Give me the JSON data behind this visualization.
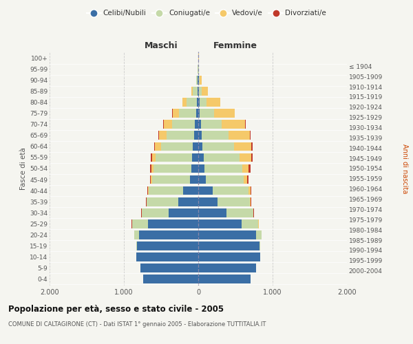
{
  "age_groups": [
    "0-4",
    "5-9",
    "10-14",
    "15-19",
    "20-24",
    "25-29",
    "30-34",
    "35-39",
    "40-44",
    "45-49",
    "50-54",
    "55-59",
    "60-64",
    "65-69",
    "70-74",
    "75-79",
    "80-84",
    "85-89",
    "90-94",
    "95-99",
    "100+"
  ],
  "birth_years": [
    "2000-2004",
    "1995-1999",
    "1990-1994",
    "1985-1989",
    "1980-1984",
    "1975-1979",
    "1970-1974",
    "1965-1969",
    "1960-1964",
    "1955-1959",
    "1950-1954",
    "1945-1949",
    "1940-1944",
    "1935-1939",
    "1930-1934",
    "1925-1929",
    "1920-1924",
    "1915-1919",
    "1910-1914",
    "1905-1909",
    "≤ 1904"
  ],
  "maschi": {
    "celibi": [
      740,
      780,
      830,
      820,
      800,
      680,
      400,
      270,
      200,
      110,
      90,
      80,
      70,
      55,
      45,
      25,
      15,
      10,
      5,
      3,
      2
    ],
    "coniugati": [
      1,
      2,
      5,
      10,
      60,
      210,
      360,
      420,
      470,
      510,
      510,
      490,
      430,
      370,
      310,
      230,
      140,
      60,
      20,
      5,
      2
    ],
    "vedovi": [
      0,
      0,
      0,
      0,
      0,
      1,
      2,
      3,
      5,
      15,
      30,
      50,
      80,
      100,
      110,
      90,
      55,
      20,
      5,
      2,
      0
    ],
    "divorziati": [
      0,
      0,
      0,
      1,
      2,
      4,
      8,
      10,
      12,
      15,
      20,
      18,
      15,
      12,
      10,
      5,
      3,
      2,
      1,
      0,
      0
    ]
  },
  "femmine": {
    "nubili": [
      700,
      780,
      830,
      820,
      780,
      580,
      380,
      260,
      190,
      100,
      80,
      70,
      55,
      45,
      35,
      20,
      15,
      10,
      5,
      3,
      2
    ],
    "coniugate": [
      1,
      2,
      5,
      15,
      70,
      230,
      360,
      430,
      490,
      510,
      510,
      490,
      430,
      360,
      280,
      190,
      100,
      40,
      18,
      5,
      2
    ],
    "vedove": [
      0,
      0,
      0,
      0,
      1,
      2,
      5,
      10,
      20,
      45,
      90,
      150,
      230,
      290,
      310,
      280,
      180,
      80,
      20,
      5,
      2
    ],
    "divorziate": [
      0,
      0,
      0,
      1,
      2,
      4,
      8,
      12,
      15,
      20,
      25,
      22,
      18,
      12,
      10,
      5,
      3,
      2,
      1,
      0,
      0
    ]
  },
  "color_celibi": "#3a6ea5",
  "color_coniugati": "#c5d9a8",
  "color_vedovi": "#f5c96a",
  "color_divorziati": "#c0392b",
  "title": "Popolazione per età, sesso e stato civile - 2005",
  "subtitle": "COMUNE DI CALTAGIRONE (CT) - Dati ISTAT 1° gennaio 2005 - Elaborazione TUTTITALIA.IT",
  "xlabel_left": "Maschi",
  "xlabel_right": "Femmine",
  "ylabel_left": "Fasce di età",
  "ylabel_right": "Anni di nascita",
  "xlim": 2000,
  "background_color": "#f5f5f0",
  "grid_color": "#cccccc"
}
